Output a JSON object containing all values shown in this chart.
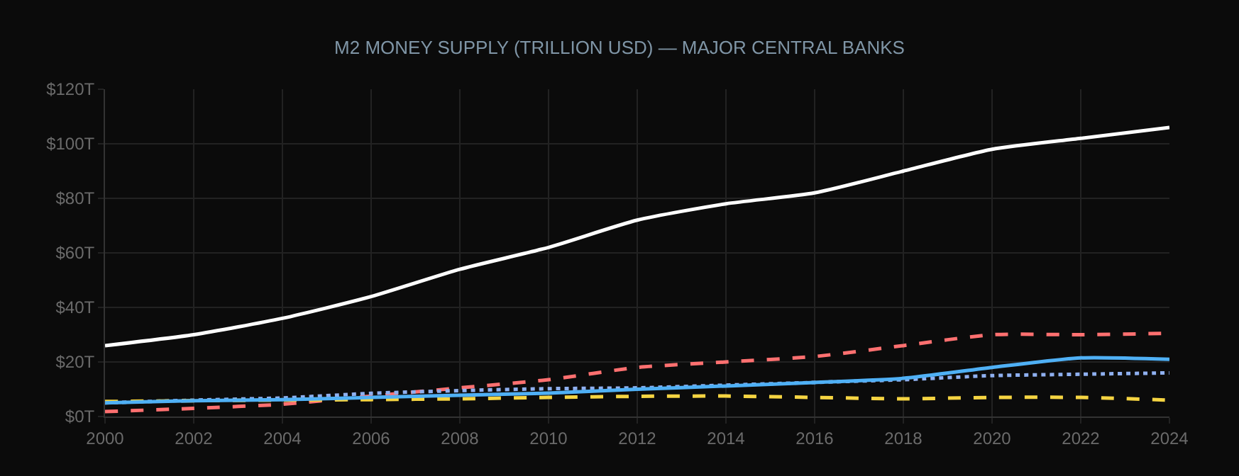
{
  "chart_data": {
    "type": "line",
    "title": "M2 MONEY SUPPLY (TRILLION USD) — MAJOR CENTRAL BANKS",
    "x": [
      2000,
      2002,
      2004,
      2006,
      2008,
      2010,
      2012,
      2014,
      2016,
      2018,
      2020,
      2022,
      2024
    ],
    "series": [
      {
        "color": "#ffffff",
        "line_style": "solid",
        "values": [
          26,
          30,
          36,
          44,
          54,
          62,
          72,
          78,
          82,
          90,
          98,
          102,
          106
        ]
      },
      {
        "color": "#ff7070",
        "line_style": "dashed",
        "values": [
          1.8,
          3,
          4.5,
          7.5,
          10.5,
          13.5,
          18,
          20,
          22,
          26,
          30,
          30,
          30.5
        ]
      },
      {
        "color": "#8fb0f0",
        "line_style": "dotted",
        "values": [
          5,
          6,
          6.8,
          8.5,
          9.5,
          10.2,
          10.5,
          11.5,
          12.5,
          13.5,
          15,
          15.5,
          16
        ]
      },
      {
        "color": "#f5d442",
        "line_style": "dashed",
        "values": [
          5.5,
          5.8,
          6,
          6.2,
          6.5,
          7,
          7.4,
          7.5,
          7,
          6.5,
          7,
          7,
          6
        ]
      },
      {
        "color": "#4fb0f5",
        "line_style": "solid",
        "values": [
          5,
          5.8,
          6.2,
          7,
          7.8,
          8.6,
          10,
          11.2,
          12.5,
          14,
          18,
          21.5,
          21
        ]
      }
    ],
    "xlim": [
      2000,
      2024
    ],
    "xticks": [
      2000,
      2002,
      2004,
      2006,
      2008,
      2010,
      2012,
      2014,
      2016,
      2018,
      2020,
      2022,
      2024
    ],
    "ylim": [
      0,
      120
    ],
    "yticks": [
      {
        "value": 0,
        "label": "$0T"
      },
      {
        "value": 20,
        "label": "$20T"
      },
      {
        "value": 40,
        "label": "$40T"
      },
      {
        "value": 60,
        "label": "$60T"
      },
      {
        "value": 80,
        "label": "$80T"
      },
      {
        "value": 100,
        "label": "$100T"
      },
      {
        "value": 120,
        "label": "$120T"
      }
    ],
    "grid": true,
    "marker": "none"
  }
}
